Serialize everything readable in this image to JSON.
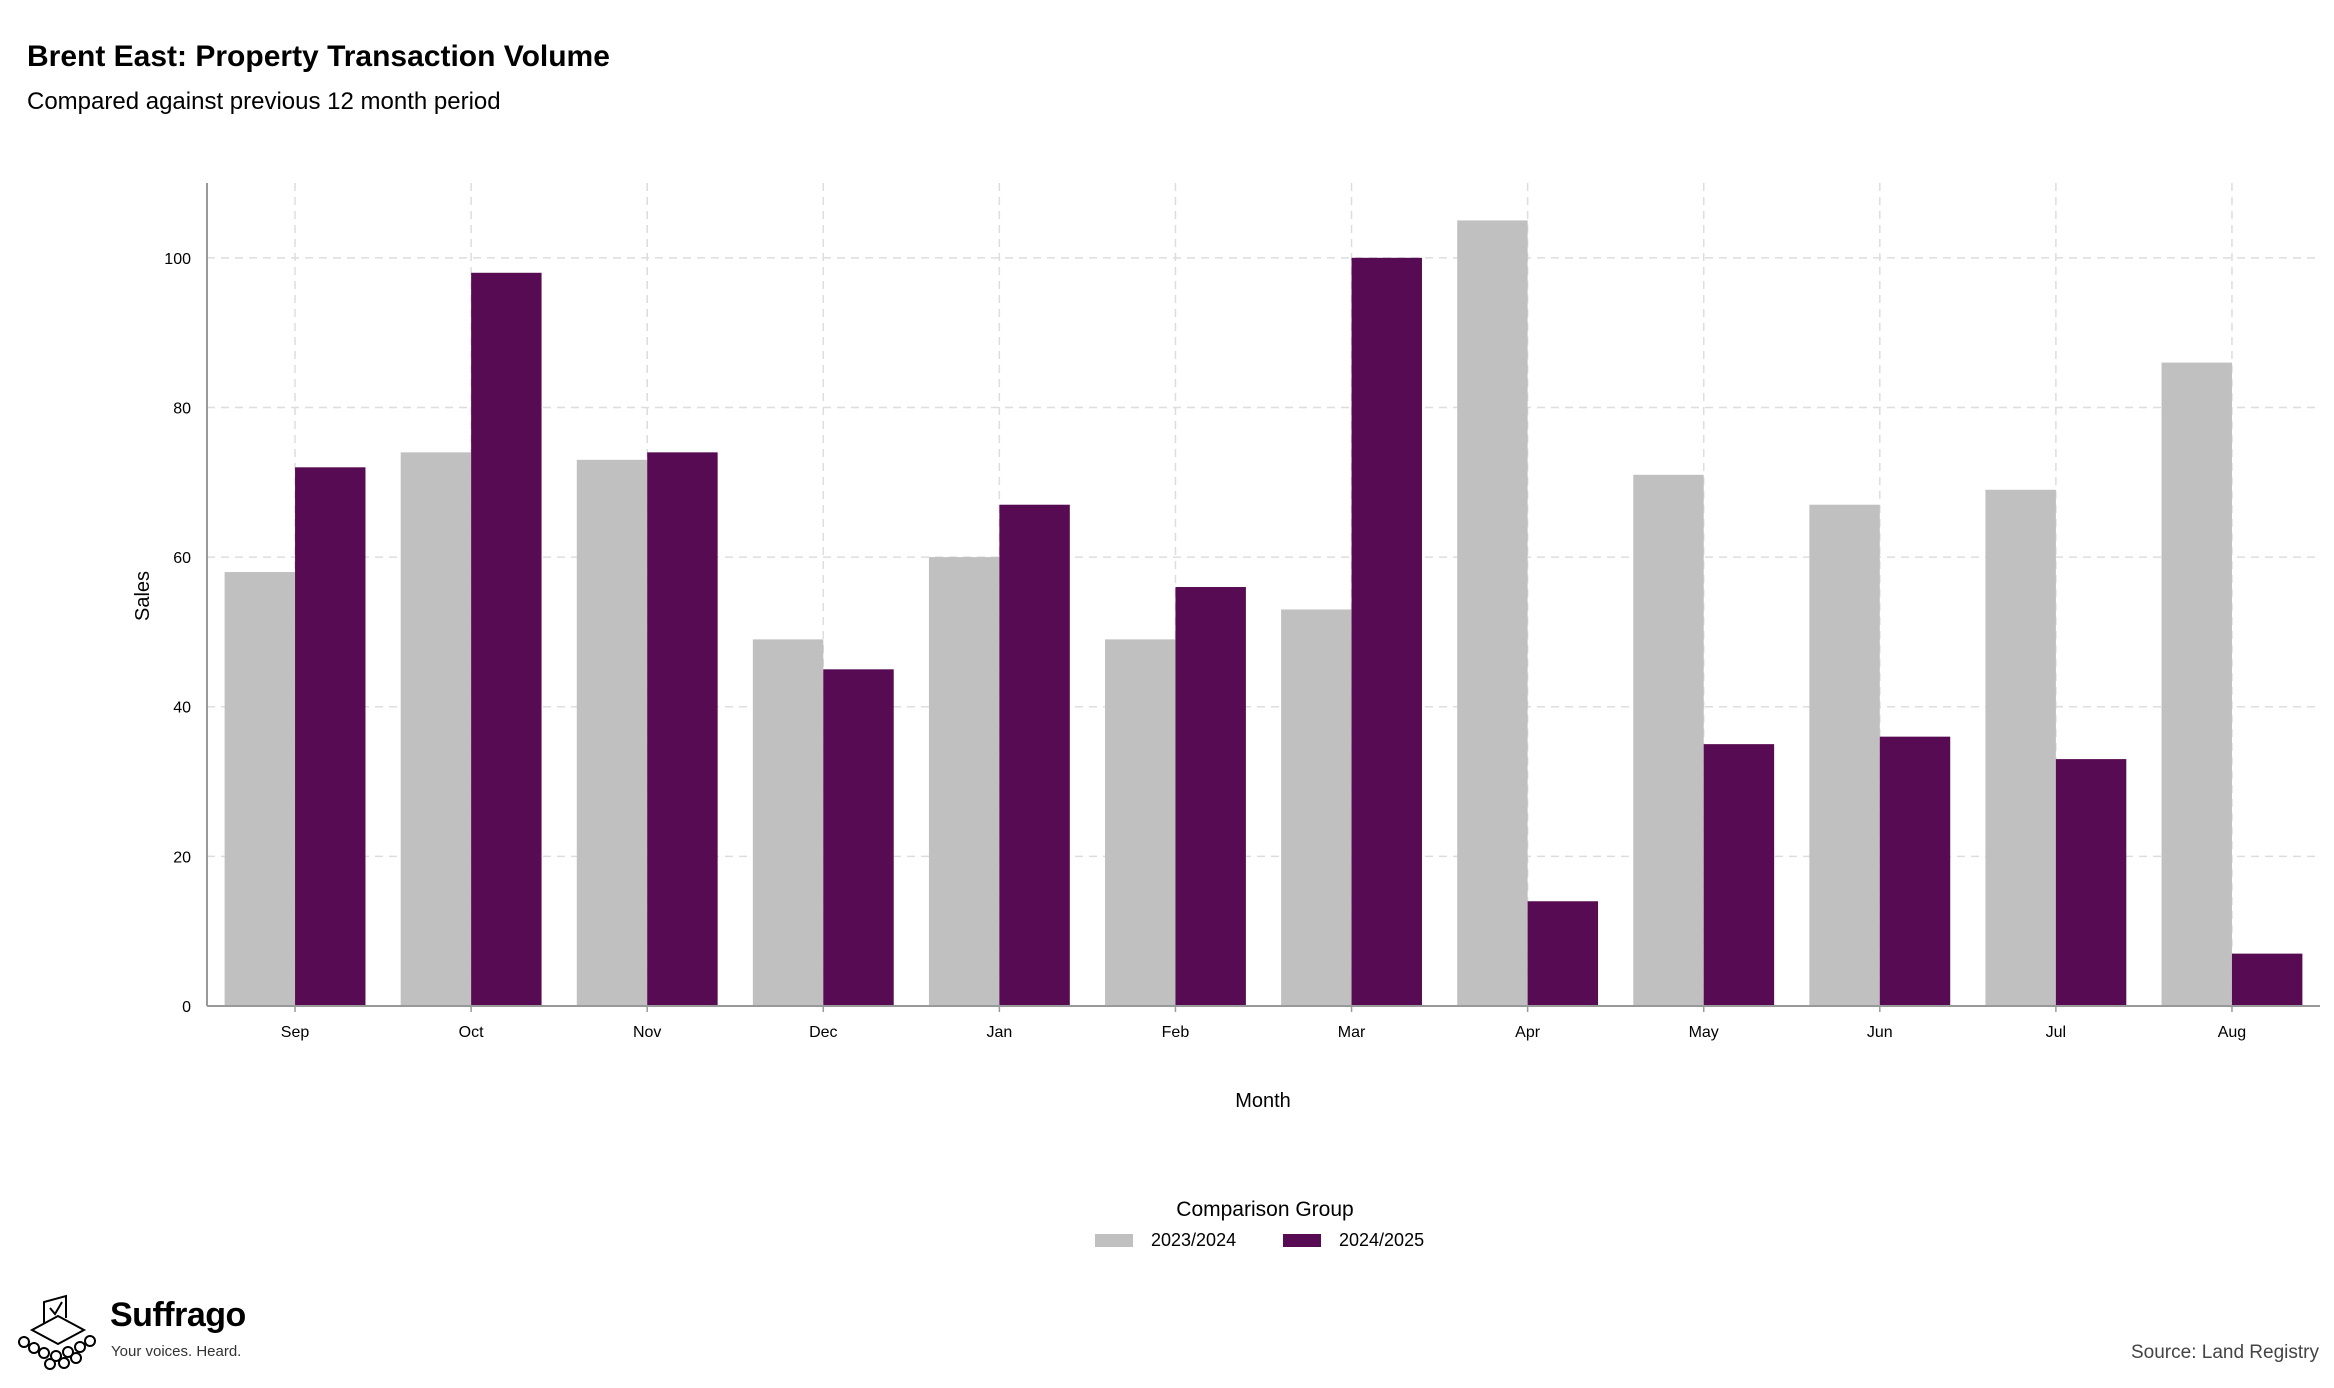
{
  "title": "Brent East: Property Transaction Volume",
  "subtitle": "Compared against previous 12 month period",
  "source": "Source: Land Registry",
  "brand": {
    "name": "Suffrago",
    "tagline": "Your voices. Heard.",
    "logo_icon": "ballot-box-icon"
  },
  "legend": {
    "title": "Comparison Group"
  },
  "colors": {
    "series_2023_2024": "#c0c0c0",
    "series_2024_2025": "#570b52",
    "grid": "#dddddd",
    "axis": "#999999"
  },
  "chart_data": {
    "type": "bar",
    "title": "Brent East: Property Transaction Volume",
    "subtitle": "Compared against previous 12 month period",
    "xlabel": "Month",
    "ylabel": "Sales",
    "ylim": [
      0,
      110
    ],
    "yticks": [
      0,
      20,
      40,
      60,
      80,
      100
    ],
    "grid": true,
    "legend_position": "bottom",
    "categories": [
      "Sep",
      "Oct",
      "Nov",
      "Dec",
      "Jan",
      "Feb",
      "Mar",
      "Apr",
      "May",
      "Jun",
      "Jul",
      "Aug"
    ],
    "series": [
      {
        "name": "2023/2024",
        "values": [
          58,
          74,
          73,
          49,
          60,
          49,
          53,
          105,
          71,
          67,
          69,
          86
        ]
      },
      {
        "name": "2024/2025",
        "values": [
          72,
          98,
          74,
          45,
          67,
          56,
          100,
          14,
          35,
          36,
          33,
          7
        ]
      }
    ]
  }
}
